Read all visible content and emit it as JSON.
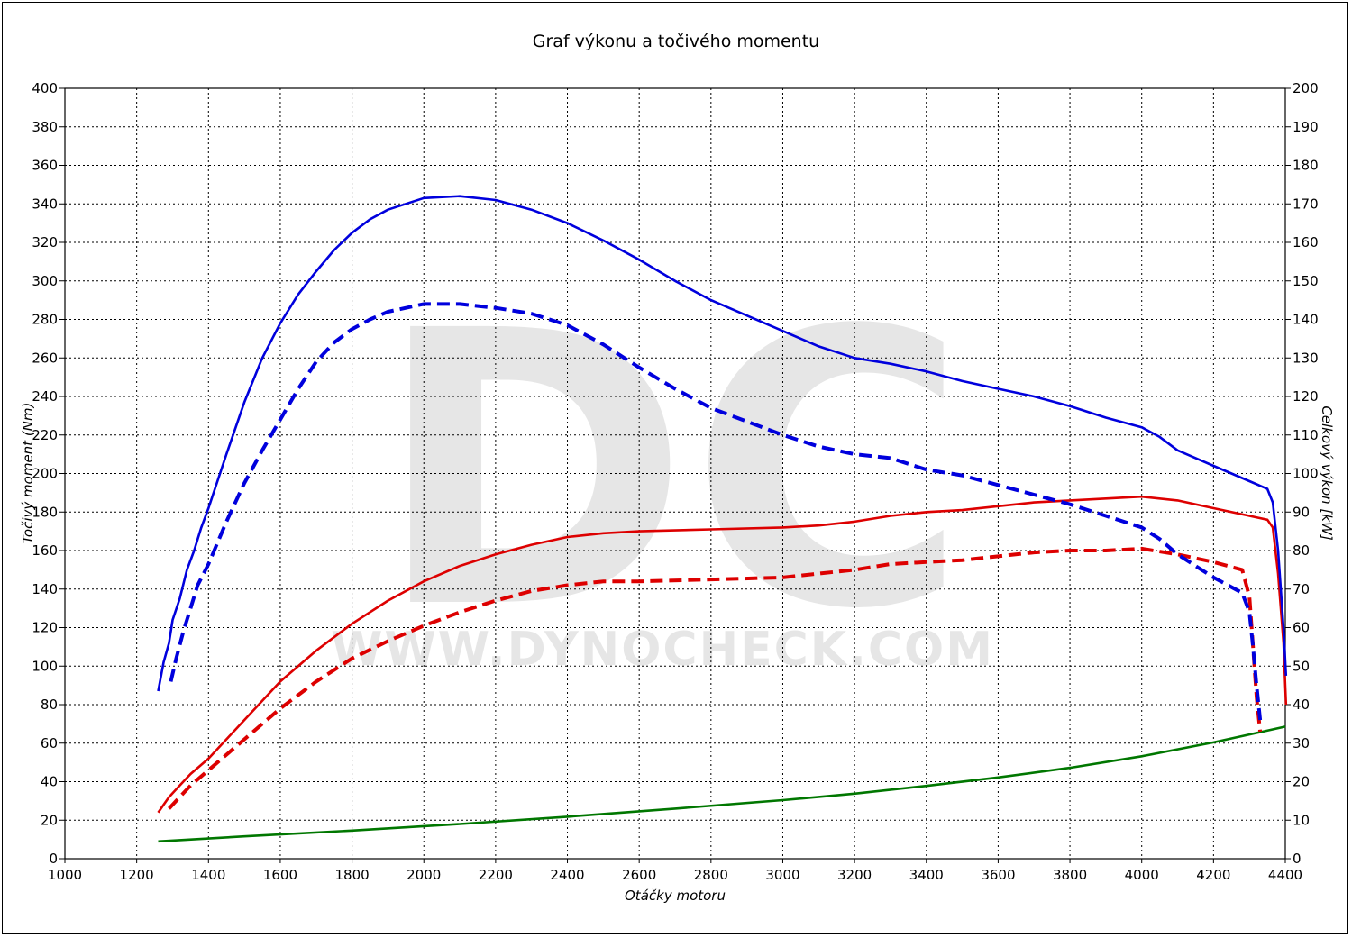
{
  "chart_data": {
    "type": "line",
    "title": "Graf výkonu a točivého momentu",
    "xlabel": "Otáčky motoru",
    "ylabel_left": "Točivý moment (Nm)",
    "ylabel_right": "Celkový výkon [kW]",
    "xlim": [
      1000,
      4400
    ],
    "ylim_left": [
      0,
      400
    ],
    "ylim_right": [
      0,
      200
    ],
    "x_ticks": [
      1000,
      1200,
      1400,
      1600,
      1800,
      2000,
      2200,
      2400,
      2600,
      2800,
      3000,
      3200,
      3400,
      3600,
      3800,
      4000,
      4200,
      4400
    ],
    "y_ticks_left": [
      0,
      20,
      40,
      60,
      80,
      100,
      120,
      140,
      160,
      180,
      200,
      220,
      240,
      260,
      280,
      300,
      320,
      340,
      360,
      380,
      400
    ],
    "y_ticks_right": [
      0,
      10,
      20,
      30,
      40,
      50,
      60,
      70,
      80,
      90,
      100,
      110,
      120,
      130,
      140,
      150,
      160,
      170,
      180,
      190,
      200
    ],
    "grid": true,
    "watermark": {
      "letters": "DC",
      "text": "WWW.DYNOCHECK.COM"
    },
    "series": [
      {
        "key": "torque_tuned",
        "axis": "left",
        "color": "#0000dd",
        "dash": "solid",
        "x": [
          1260,
          1275,
          1290,
          1300,
          1320,
          1340,
          1360,
          1380,
          1400,
          1450,
          1500,
          1550,
          1600,
          1650,
          1700,
          1750,
          1800,
          1850,
          1900,
          2000,
          2100,
          2200,
          2300,
          2400,
          2500,
          2600,
          2700,
          2800,
          2900,
          3000,
          3100,
          3200,
          3300,
          3400,
          3500,
          3600,
          3700,
          3800,
          3900,
          4000,
          4050,
          4100,
          4200,
          4300,
          4350,
          4365,
          4380,
          4395,
          4402
        ],
        "y": [
          87,
          102,
          112,
          124,
          135,
          150,
          160,
          172,
          182,
          210,
          237,
          260,
          278,
          293,
          305,
          316,
          325,
          332,
          337,
          343,
          344,
          342,
          337,
          330,
          321,
          311,
          300,
          290,
          282,
          274,
          266,
          260,
          257,
          253,
          248,
          244,
          240,
          235,
          229,
          224,
          219,
          212,
          204,
          196,
          192,
          185,
          160,
          120,
          95
        ]
      },
      {
        "key": "torque_stock",
        "axis": "left",
        "color": "#0000dd",
        "dash": "dashed",
        "x": [
          1295,
          1310,
          1330,
          1350,
          1370,
          1400,
          1450,
          1500,
          1550,
          1600,
          1650,
          1700,
          1750,
          1800,
          1850,
          1900,
          2000,
          2100,
          2200,
          2300,
          2400,
          2500,
          2600,
          2700,
          2800,
          2900,
          3000,
          3100,
          3200,
          3300,
          3400,
          3500,
          3600,
          3700,
          3800,
          3900,
          4000,
          4050,
          4100,
          4200,
          4280,
          4300,
          4310,
          4320,
          4330
        ],
        "y": [
          92,
          104,
          118,
          130,
          142,
          153,
          175,
          195,
          212,
          228,
          244,
          258,
          268,
          275,
          280,
          284,
          288,
          288,
          286,
          283,
          277,
          267,
          255,
          244,
          234,
          227,
          220,
          214,
          210,
          208,
          202,
          199,
          194,
          189,
          184,
          178,
          172,
          166,
          158,
          146,
          138,
          128,
          110,
          90,
          72
        ]
      },
      {
        "key": "power_tuned",
        "axis": "right",
        "color": "#dd0000",
        "dash": "solid",
        "x": [
          1260,
          1290,
          1320,
          1350,
          1400,
          1450,
          1500,
          1550,
          1600,
          1700,
          1800,
          1900,
          2000,
          2100,
          2200,
          2300,
          2400,
          2500,
          2600,
          2800,
          3000,
          3100,
          3200,
          3300,
          3400,
          3500,
          3600,
          3700,
          3800,
          3900,
          4000,
          4100,
          4200,
          4300,
          4350,
          4365,
          4380,
          4395,
          4402
        ],
        "y": [
          12,
          16,
          19,
          22,
          26,
          31,
          36,
          41,
          46,
          54,
          61,
          67,
          72,
          76,
          79,
          81.5,
          83.5,
          84.5,
          85,
          85.5,
          86,
          86.5,
          87.5,
          89,
          90,
          90.5,
          91.5,
          92.5,
          93,
          93.5,
          94,
          93,
          91,
          89,
          88,
          86,
          74,
          56,
          40
        ]
      },
      {
        "key": "power_stock",
        "axis": "right",
        "color": "#dd0000",
        "dash": "dashed",
        "x": [
          1290,
          1320,
          1350,
          1400,
          1450,
          1500,
          1550,
          1600,
          1700,
          1800,
          1900,
          2000,
          2100,
          2200,
          2300,
          2400,
          2500,
          2600,
          2800,
          3000,
          3100,
          3200,
          3300,
          3400,
          3500,
          3600,
          3700,
          3800,
          3900,
          4000,
          4100,
          4200,
          4280,
          4300,
          4310,
          4320,
          4330
        ],
        "y": [
          13,
          16,
          19,
          23,
          27,
          31,
          35,
          39,
          46,
          52,
          56.5,
          60.5,
          64,
          67,
          69.5,
          71,
          72,
          72,
          72.5,
          73,
          74,
          75,
          76.5,
          77,
          77.5,
          78.5,
          79.5,
          80,
          80,
          80.5,
          79,
          77,
          75,
          68,
          55,
          42,
          33
        ]
      },
      {
        "key": "losses",
        "axis": "right",
        "color": "#007700",
        "dash": "solid",
        "x": [
          1260,
          1500,
          1800,
          2100,
          2400,
          2700,
          3000,
          3200,
          3400,
          3600,
          3800,
          4000,
          4200,
          4400
        ],
        "y": [
          4.5,
          5.8,
          7.3,
          9.0,
          10.9,
          13.0,
          15.2,
          16.9,
          18.9,
          21.1,
          23.6,
          26.6,
          30.2,
          34.3
        ]
      }
    ]
  }
}
